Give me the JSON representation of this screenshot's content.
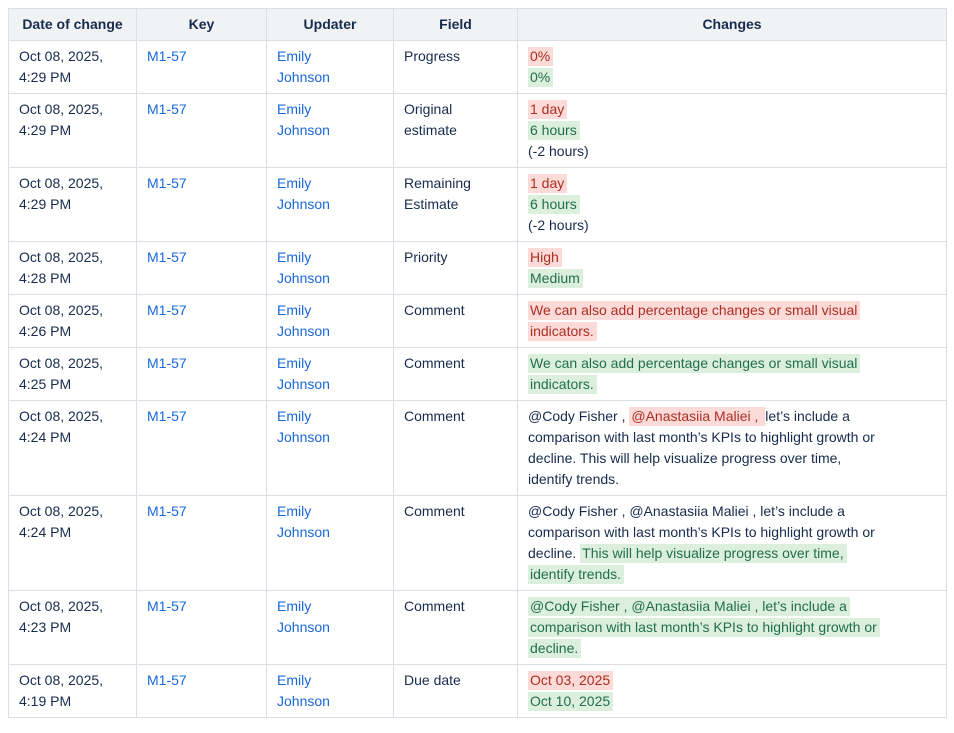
{
  "colors": {
    "page_background": "#ffffff",
    "header_background": "#f1f2f4",
    "border": "#dbdee4",
    "body_text": "#172b4d",
    "link_blue": "#1868db",
    "removed_text": "#ae2e24",
    "removed_background": "#fbdad7",
    "added_text": "#216e4e",
    "added_background": "#dcefdc"
  },
  "table": {
    "headers": [
      "Date of change",
      "Key",
      "Updater",
      "Field",
      "Changes"
    ],
    "rows": [
      {
        "date": "Oct 08, 2025, 4:29 PM",
        "key": "M1-57",
        "updater": "Emily Johnson",
        "field": "Progress",
        "changes": [
          [
            {
              "text": "0%",
              "style": "removed"
            }
          ],
          [
            {
              "text": "0%",
              "style": "added"
            }
          ]
        ]
      },
      {
        "date": "Oct 08, 2025, 4:29 PM",
        "key": "M1-57",
        "updater": "Emily Johnson",
        "field": "Original estimate",
        "changes": [
          [
            {
              "text": "1 day",
              "style": "removed"
            }
          ],
          [
            {
              "text": "6 hours",
              "style": "added"
            }
          ],
          [
            {
              "text": "(-2 hours)",
              "style": "plain"
            }
          ]
        ]
      },
      {
        "date": "Oct 08, 2025, 4:29 PM",
        "key": "M1-57",
        "updater": "Emily Johnson",
        "field": "Remaining Estimate",
        "changes": [
          [
            {
              "text": "1 day",
              "style": "removed"
            }
          ],
          [
            {
              "text": "6 hours",
              "style": "added"
            }
          ],
          [
            {
              "text": "(-2 hours)",
              "style": "plain"
            }
          ]
        ]
      },
      {
        "date": "Oct 08, 2025, 4:28 PM",
        "key": "M1-57",
        "updater": "Emily Johnson",
        "field": "Priority",
        "changes": [
          [
            {
              "text": "High",
              "style": "removed"
            }
          ],
          [
            {
              "text": "Medium",
              "style": "added"
            }
          ]
        ]
      },
      {
        "date": "Oct 08, 2025, 4:26 PM",
        "key": "M1-57",
        "updater": "Emily Johnson",
        "field": "Comment",
        "changes": [
          [
            {
              "text": "We can also add percentage changes or small visual indicators.",
              "style": "removed"
            }
          ]
        ]
      },
      {
        "date": "Oct 08, 2025, 4:25 PM",
        "key": "M1-57",
        "updater": "Emily Johnson",
        "field": "Comment",
        "changes": [
          [
            {
              "text": "We can also add percentage changes or small visual indicators.",
              "style": "added"
            }
          ]
        ]
      },
      {
        "date": "Oct 08, 2025, 4:24 PM",
        "key": "M1-57",
        "updater": "Emily Johnson",
        "field": "Comment",
        "changes": [
          [
            {
              "text": "@Cody Fisher , ",
              "style": "plain"
            },
            {
              "text": "@Anastasiia Maliei , ",
              "style": "removed"
            },
            {
              "text": "let’s include a comparison with last month’s KPIs to highlight growth or decline. This will help visualize progress over time, identify trends.",
              "style": "plain"
            }
          ]
        ]
      },
      {
        "date": "Oct 08, 2025, 4:24 PM",
        "key": "M1-57",
        "updater": "Emily Johnson",
        "field": "Comment",
        "changes": [
          [
            {
              "text": "@Cody Fisher , @Anastasiia Maliei , let’s include a comparison with last month’s KPIs to highlight growth or decline. ",
              "style": "plain"
            },
            {
              "text": "This will help visualize progress over time, identify trends.",
              "style": "added"
            }
          ]
        ]
      },
      {
        "date": "Oct 08, 2025, 4:23 PM",
        "key": "M1-57",
        "updater": "Emily Johnson",
        "field": "Comment",
        "changes": [
          [
            {
              "text": "@Cody Fisher , @Anastasiia Maliei , let’s include a comparison with last month’s KPIs to highlight growth or decline.",
              "style": "added"
            }
          ]
        ]
      },
      {
        "date": "Oct 08, 2025, 4:19 PM",
        "key": "M1-57",
        "updater": "Emily Johnson",
        "field": "Due date",
        "changes": [
          [
            {
              "text": "Oct 03, 2025",
              "style": "removed"
            }
          ],
          [
            {
              "text": "Oct 10, 2025",
              "style": "added"
            }
          ]
        ]
      }
    ]
  }
}
